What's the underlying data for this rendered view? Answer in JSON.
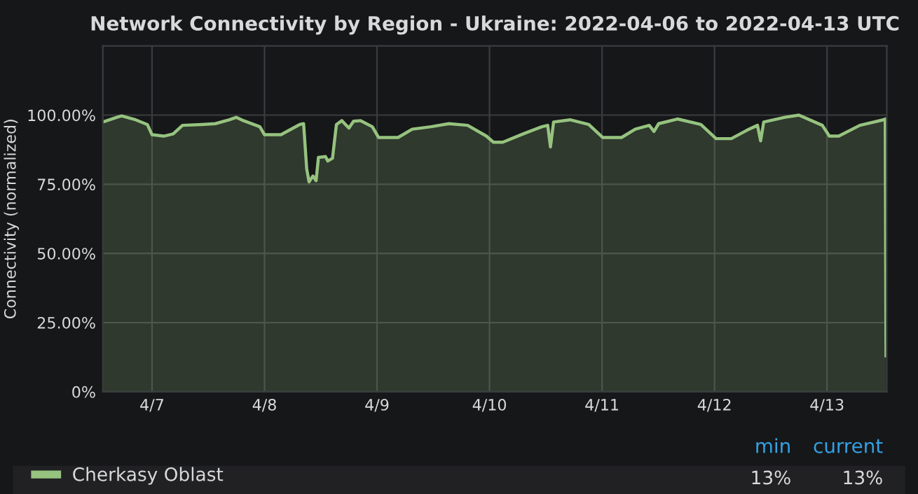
{
  "chart_data": {
    "type": "area",
    "title": "Network Connectivity by Region - Ukraine: 2022-04-06 to 2022-04-13 UTC",
    "ylabel": "Connectivity (normalized)",
    "x": [
      "2022-04-06T13:30",
      "2022-04-06T16:30",
      "2022-04-06T17:30",
      "2022-04-06T20:30",
      "2022-04-06T23:00",
      "2022-04-07T00:00",
      "2022-04-07T02:30",
      "2022-04-07T04:30",
      "2022-04-07T06:30",
      "2022-04-07T10:30",
      "2022-04-07T13:30",
      "2022-04-07T16:30",
      "2022-04-07T18:00",
      "2022-04-07T19:30",
      "2022-04-07T23:00",
      "2022-04-08T00:00",
      "2022-04-08T03:30",
      "2022-04-08T07:30",
      "2022-04-08T08:20",
      "2022-04-08T09:00",
      "2022-04-08T09:30",
      "2022-04-08T10:20",
      "2022-04-08T11:00",
      "2022-04-08T11:30",
      "2022-04-08T13:00",
      "2022-04-08T13:30",
      "2022-04-08T14:30",
      "2022-04-08T15:20",
      "2022-04-08T16:30",
      "2022-04-08T18:00",
      "2022-04-08T19:00",
      "2022-04-08T20:30",
      "2022-04-08T23:00",
      "2022-04-09T00:20",
      "2022-04-09T04:30",
      "2022-04-09T07:30",
      "2022-04-09T11:30",
      "2022-04-09T15:20",
      "2022-04-09T19:20",
      "2022-04-09T23:20",
      "2022-04-10T00:50",
      "2022-04-10T02:50",
      "2022-04-10T07:10",
      "2022-04-10T11:10",
      "2022-04-10T12:25",
      "2022-04-10T13:00",
      "2022-04-10T13:40",
      "2022-04-10T17:10",
      "2022-04-10T21:10",
      "2022-04-11T00:10",
      "2022-04-11T04:10",
      "2022-04-11T07:05",
      "2022-04-11T10:05",
      "2022-04-11T11:05",
      "2022-04-11T12:05",
      "2022-04-11T16:05",
      "2022-04-11T21:05",
      "2022-04-12T00:20",
      "2022-04-12T03:35",
      "2022-04-12T07:00",
      "2022-04-12T09:10",
      "2022-04-12T09:50",
      "2022-04-12T10:30",
      "2022-04-12T15:00",
      "2022-04-12T18:00",
      "2022-04-12T23:00",
      "2022-04-13T00:30",
      "2022-04-13T02:30",
      "2022-04-13T07:00",
      "2022-04-13T12:00",
      "2022-04-13T12:25",
      "2022-04-13T12:35"
    ],
    "series": [
      {
        "name": "Cherkasy Oblast",
        "color": "#96c37f",
        "values": [
          97.5,
          99.2,
          99.7,
          98.3,
          96.6,
          92.9,
          92.4,
          93.2,
          96.3,
          96.6,
          96.9,
          98.3,
          99.2,
          98,
          95.8,
          92.9,
          92.9,
          96.6,
          96.9,
          80.5,
          75.9,
          78,
          76.3,
          84.7,
          85,
          83.4,
          84.4,
          96.6,
          98,
          95.3,
          97.8,
          98,
          95.8,
          91.9,
          91.9,
          94.9,
          95.8,
          96.9,
          96.3,
          92.4,
          90.2,
          90.2,
          93.2,
          95.8,
          96.3,
          88.5,
          97.5,
          98.3,
          96.6,
          91.9,
          91.9,
          94.9,
          96.3,
          94.1,
          96.9,
          98.6,
          96.6,
          91.5,
          91.5,
          94.6,
          96.3,
          90.7,
          97.5,
          99.2,
          100,
          96.3,
          92.4,
          92.4,
          96.3,
          98.3,
          98.6,
          13
        ]
      }
    ],
    "xlim": [
      "2022-04-06T13:30",
      "2022-04-13T12:45"
    ],
    "xticks": [
      {
        "value": "2022-04-07",
        "label": "4/7"
      },
      {
        "value": "2022-04-08",
        "label": "4/8"
      },
      {
        "value": "2022-04-09",
        "label": "4/9"
      },
      {
        "value": "2022-04-10",
        "label": "4/10"
      },
      {
        "value": "2022-04-11",
        "label": "4/11"
      },
      {
        "value": "2022-04-12",
        "label": "4/12"
      },
      {
        "value": "2022-04-13",
        "label": "4/13"
      }
    ],
    "ylim": [
      0,
      125
    ],
    "yticks": [
      {
        "value": 0,
        "label": "0%"
      },
      {
        "value": 25,
        "label": "25.00%"
      },
      {
        "value": 50,
        "label": "50.00%"
      },
      {
        "value": 75,
        "label": "75.00%"
      },
      {
        "value": 100,
        "label": "100.00%"
      }
    ],
    "grid": true,
    "legend": "bottom",
    "marker": "none",
    "line_style": "solid",
    "annotations": [
      "min",
      "current",
      "13%",
      "13%"
    ]
  }
}
